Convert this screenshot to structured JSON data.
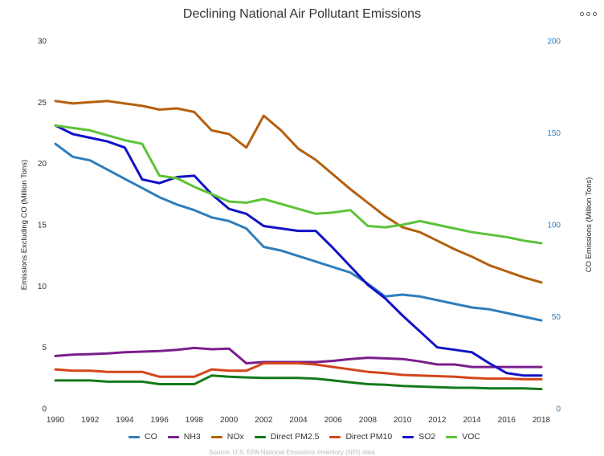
{
  "menu": {
    "icon": "ellipsis-icon"
  },
  "chart_data": {
    "type": "line",
    "title": "Declining National Air Pollutant Emissions",
    "ylabel_left": "Emissions Excluding CO (Million Tons)",
    "ylabel_right": "CO Emissions (Million Tons)",
    "x": [
      1990,
      1991,
      1992,
      1993,
      1994,
      1995,
      1996,
      1997,
      1998,
      1999,
      2000,
      2001,
      2002,
      2003,
      2004,
      2005,
      2006,
      2007,
      2008,
      2009,
      2010,
      2011,
      2012,
      2013,
      2014,
      2015,
      2016,
      2017,
      2018
    ],
    "x_ticks": [
      "1990",
      "1992",
      "1994",
      "1996",
      "1998",
      "2000",
      "2002",
      "2004",
      "2006",
      "2008",
      "2010",
      "2012",
      "2014",
      "2016",
      "2018"
    ],
    "y_left_ticks": [
      "0",
      "5",
      "10",
      "15",
      "20",
      "25",
      "30"
    ],
    "y_right_ticks": [
      "0",
      "50",
      "100",
      "150",
      "200"
    ],
    "ylim_left": [
      0,
      30
    ],
    "ylim_right": [
      0,
      200
    ],
    "grid": false,
    "legend": "bottom",
    "series": [
      {
        "name": "CO",
        "axis": "right",
        "color": "#2f7ebc",
        "values": [
          144,
          137,
          135,
          130,
          125,
          120,
          115,
          111,
          108,
          104,
          102,
          98,
          88,
          86,
          83,
          80,
          77,
          74,
          68,
          61,
          62,
          61,
          59,
          57,
          55,
          54,
          52,
          50,
          48
        ]
      },
      {
        "name": "NH3",
        "axis": "left",
        "color": "#7b1e8c",
        "values": [
          4.3,
          4.4,
          4.45,
          4.5,
          4.6,
          4.65,
          4.7,
          4.8,
          4.95,
          4.85,
          4.9,
          3.7,
          3.8,
          3.8,
          3.8,
          3.8,
          3.9,
          4.05,
          4.15,
          4.1,
          4.05,
          3.85,
          3.6,
          3.6,
          3.4,
          3.4,
          3.4,
          3.4,
          3.4
        ]
      },
      {
        "name": "NOx",
        "axis": "left",
        "color": "#b5600f",
        "values": [
          25.1,
          24.9,
          25.0,
          25.1,
          24.9,
          24.7,
          24.4,
          24.5,
          24.2,
          22.7,
          22.4,
          21.3,
          23.9,
          22.7,
          21.2,
          20.3,
          19.1,
          17.9,
          16.8,
          15.7,
          14.8,
          14.4,
          13.7,
          13.0,
          12.4,
          11.7,
          11.2,
          10.7,
          10.3
        ]
      },
      {
        "name": "Direct PM2.5",
        "axis": "left",
        "color": "#157a1a",
        "values": [
          2.3,
          2.3,
          2.3,
          2.2,
          2.2,
          2.2,
          2.0,
          2.0,
          2.0,
          2.7,
          2.6,
          2.55,
          2.5,
          2.5,
          2.5,
          2.45,
          2.3,
          2.15,
          2.0,
          1.95,
          1.85,
          1.8,
          1.75,
          1.7,
          1.7,
          1.65,
          1.65,
          1.65,
          1.6
        ]
      },
      {
        "name": "Direct PM10",
        "axis": "left",
        "color": "#d4461a",
        "values": [
          3.2,
          3.1,
          3.1,
          3.0,
          3.0,
          3.0,
          2.6,
          2.6,
          2.6,
          3.2,
          3.1,
          3.1,
          3.7,
          3.7,
          3.7,
          3.6,
          3.4,
          3.2,
          3.0,
          2.9,
          2.75,
          2.7,
          2.65,
          2.6,
          2.5,
          2.45,
          2.45,
          2.4,
          2.4
        ]
      },
      {
        "name": "SO2",
        "axis": "left",
        "color": "#1212c8",
        "values": [
          23.1,
          22.4,
          22.1,
          21.8,
          21.3,
          18.7,
          18.4,
          18.9,
          19.0,
          17.5,
          16.3,
          15.9,
          14.9,
          14.7,
          14.5,
          14.5,
          13.1,
          11.6,
          10.1,
          9.0,
          7.6,
          6.3,
          5.0,
          4.8,
          4.6,
          3.7,
          2.9,
          2.7,
          2.7
        ]
      },
      {
        "name": "VOC",
        "axis": "left",
        "color": "#5cc337",
        "values": [
          23.1,
          22.9,
          22.7,
          22.3,
          21.9,
          21.6,
          19.0,
          18.8,
          18.1,
          17.5,
          16.9,
          16.8,
          17.1,
          16.7,
          16.3,
          15.9,
          16.0,
          16.2,
          14.9,
          14.8,
          15.0,
          15.3,
          15.0,
          14.7,
          14.4,
          14.2,
          14.0,
          13.7,
          13.5
        ]
      }
    ]
  },
  "source_text": "Source: U.S. EPA National Emissions Inventory (NEI) data"
}
